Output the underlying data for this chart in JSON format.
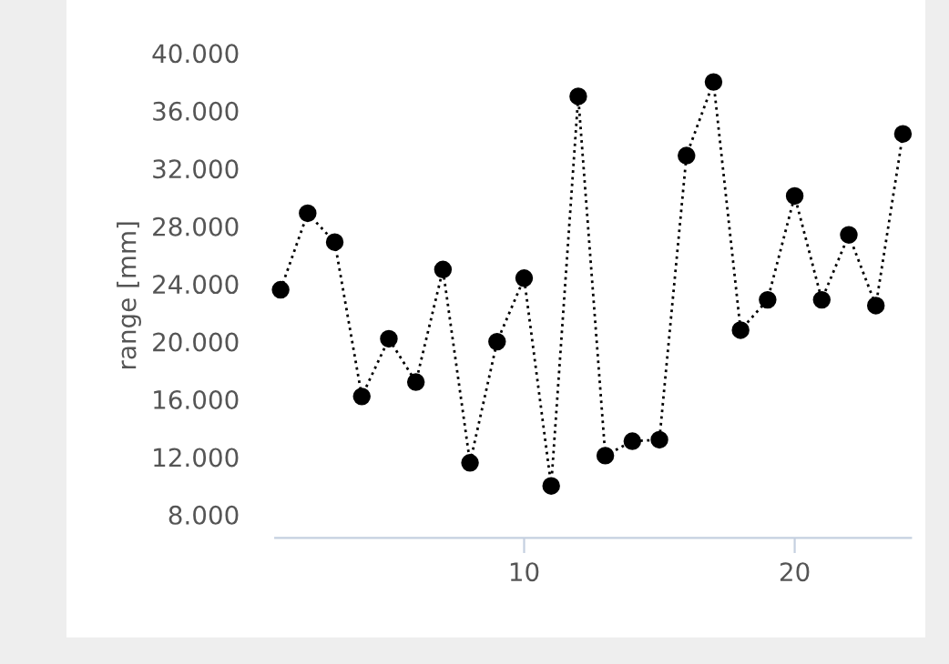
{
  "chart_data": {
    "type": "line",
    "ylabel": "range [mm]",
    "x": [
      1,
      2,
      3,
      4,
      5,
      6,
      7,
      8,
      9,
      10,
      11,
      12,
      13,
      14,
      15,
      16,
      17,
      18,
      19,
      20,
      21,
      22,
      23,
      24
    ],
    "series": [
      {
        "color": "#000000",
        "values": [
          23.6,
          28.9,
          26.9,
          16.2,
          20.2,
          17.2,
          25.0,
          11.6,
          20.0,
          24.4,
          10.0,
          37.0,
          12.1,
          13.1,
          13.2,
          32.9,
          38.0,
          20.8,
          22.9,
          30.1,
          22.9,
          27.4,
          22.5,
          34.4
        ]
      }
    ],
    "xlim": [
      0.8,
      24.3
    ],
    "xticks": [
      10,
      20
    ],
    "ylim": [
      6.4,
      40
    ],
    "yticks": [
      {
        "value": 8,
        "label": "8.000"
      },
      {
        "value": 12,
        "label": "12.000"
      },
      {
        "value": 16,
        "label": "16.000"
      },
      {
        "value": 20,
        "label": "20.000"
      },
      {
        "value": 24,
        "label": "24.000"
      },
      {
        "value": 28,
        "label": "28.000"
      },
      {
        "value": 32,
        "label": "32.000"
      },
      {
        "value": 36,
        "label": "36.000"
      },
      {
        "value": 40,
        "label": "40.000"
      }
    ],
    "grid": false,
    "legend": false,
    "marker": "circle",
    "line_style": "dotted"
  }
}
